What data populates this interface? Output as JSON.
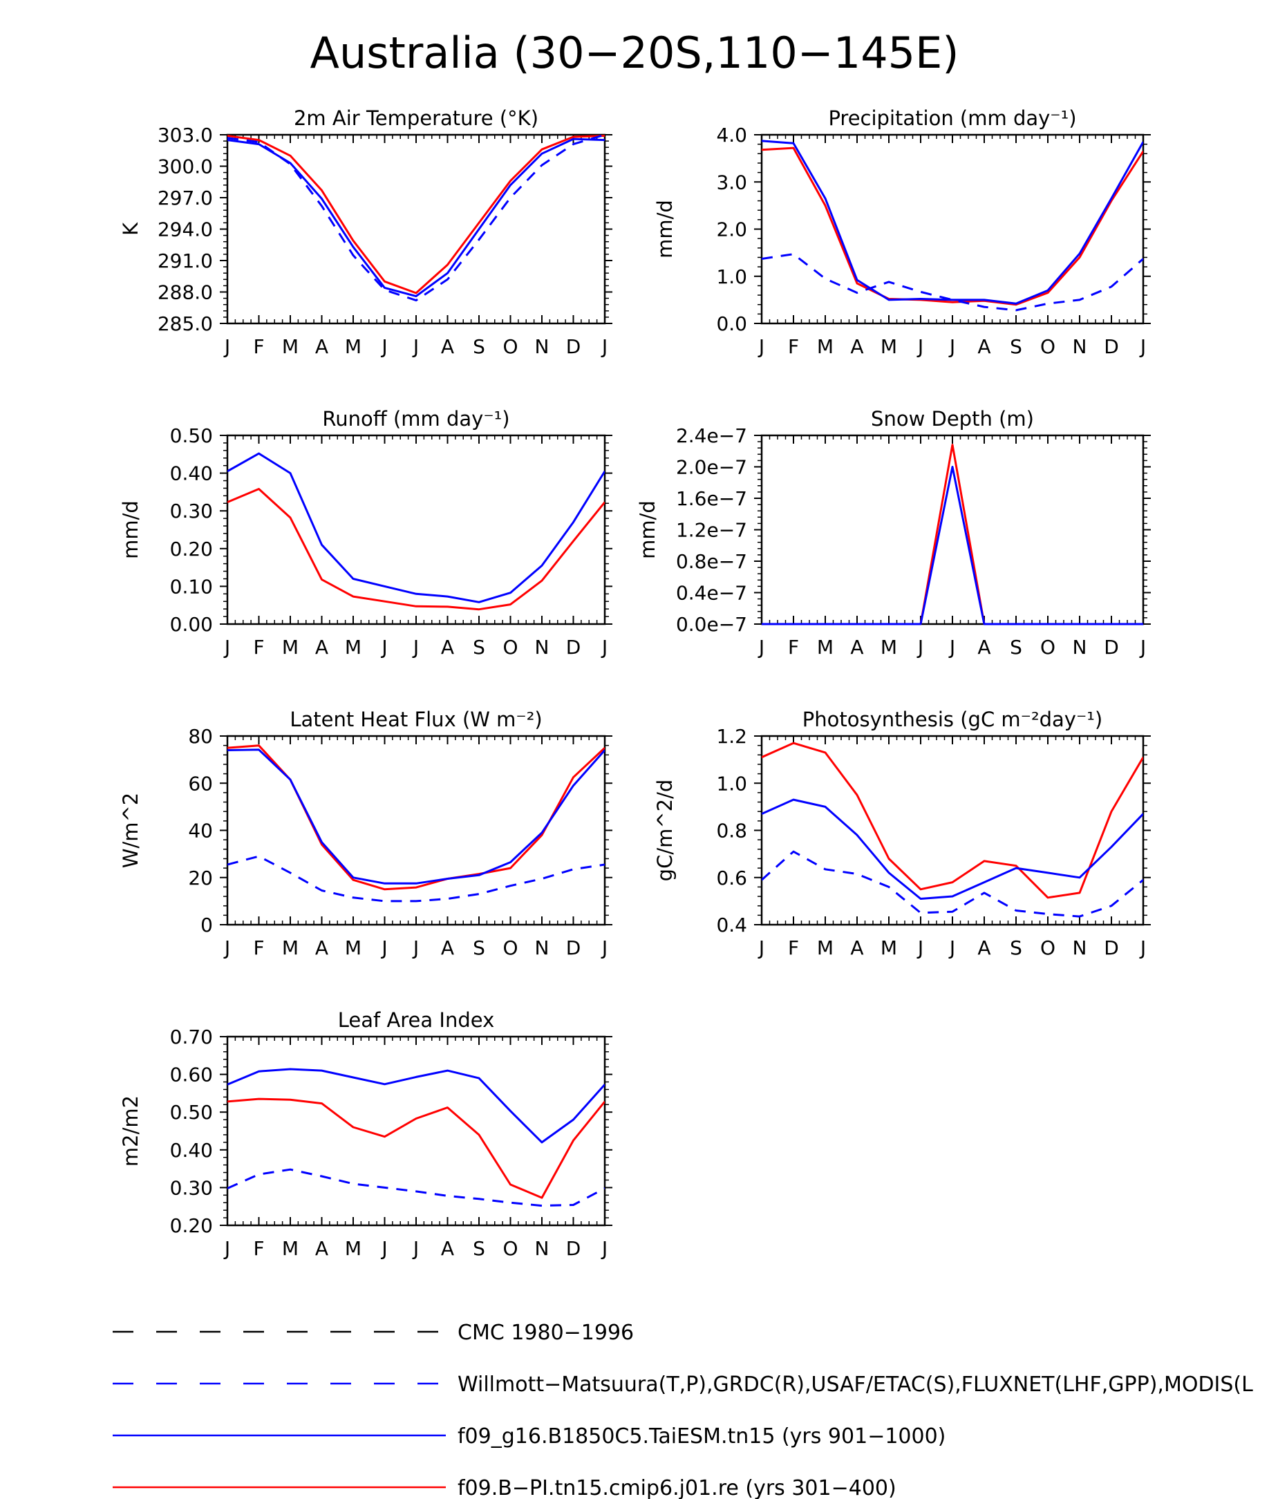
{
  "title": "Australia (30−20S,110−145E)",
  "colors": {
    "model1": "#0000ff",
    "model2": "#ff0000",
    "obs1": "#000000",
    "obs2": "#0000ff"
  },
  "legend": [
    {
      "label": "CMC 1980−1996",
      "color": "#000000",
      "dash": true
    },
    {
      "label": "Willmott−Matsuura(T,P),GRDC(R),USAF/ETAC(S),FLUXNET(LHF,GPP),MODIS(L",
      "color": "#0000ff",
      "dash": true
    },
    {
      "label": "f09_g16.B1850C5.TaiESM.tn15 (yrs 901−1000)",
      "color": "#0000ff",
      "dash": false
    },
    {
      "label": "f09.B−PI.tn15.cmip6.j01.re (yrs 301−400)",
      "color": "#ff0000",
      "dash": false
    }
  ],
  "chart_data": [
    {
      "type": "line",
      "title": "2m Air Temperature (°K)",
      "ylabel": "K",
      "categories": [
        "J",
        "F",
        "M",
        "A",
        "M",
        "J",
        "J",
        "A",
        "S",
        "O",
        "N",
        "D",
        "J"
      ],
      "ylim": [
        285.0,
        303.0
      ],
      "yticks": [
        285.0,
        288.0,
        291.0,
        294.0,
        297.0,
        300.0,
        303.0
      ],
      "ytick_labels": [
        "285.0",
        "288.0",
        "291.0",
        "294.0",
        "297.0",
        "300.0",
        "303.0"
      ],
      "series": [
        {
          "values": [
            302.9,
            302.5,
            301.0,
            297.7,
            292.9,
            289.0,
            287.9,
            290.6,
            294.6,
            298.6,
            301.6,
            302.8,
            302.9
          ],
          "color": "#ff0000",
          "dash": false
        },
        {
          "values": [
            302.5,
            302.1,
            300.3,
            296.9,
            292.3,
            288.4,
            287.6,
            289.8,
            294.0,
            298.2,
            301.2,
            302.6,
            302.5
          ],
          "color": "#0000ff",
          "dash": false
        },
        {
          "values": [
            302.7,
            302.3,
            300.2,
            296.2,
            291.5,
            288.2,
            287.2,
            289.2,
            293.0,
            297.0,
            300.1,
            302.1,
            303.0
          ],
          "color": "#0000ff",
          "dash": true
        }
      ]
    },
    {
      "type": "line",
      "title": "Precipitation (mm day⁻¹)",
      "ylabel": "mm/d",
      "categories": [
        "J",
        "F",
        "M",
        "A",
        "M",
        "J",
        "J",
        "A",
        "S",
        "O",
        "N",
        "D",
        "J"
      ],
      "ylim": [
        0.0,
        4.0
      ],
      "yticks": [
        0.0,
        1.0,
        2.0,
        3.0,
        4.0
      ],
      "ytick_labels": [
        "0.0",
        "1.0",
        "2.0",
        "3.0",
        "4.0"
      ],
      "series": [
        {
          "values": [
            3.68,
            3.72,
            2.5,
            0.85,
            0.52,
            0.5,
            0.45,
            0.48,
            0.4,
            0.65,
            1.4,
            2.6,
            3.65
          ],
          "color": "#ff0000",
          "dash": false
        },
        {
          "values": [
            3.87,
            3.82,
            2.65,
            0.92,
            0.5,
            0.52,
            0.5,
            0.5,
            0.42,
            0.7,
            1.48,
            2.65,
            3.85
          ],
          "color": "#0000ff",
          "dash": false
        },
        {
          "values": [
            1.37,
            1.47,
            0.95,
            0.65,
            0.88,
            0.67,
            0.5,
            0.35,
            0.28,
            0.42,
            0.5,
            0.78,
            1.37
          ],
          "color": "#0000ff",
          "dash": true
        }
      ]
    },
    {
      "type": "line",
      "title": "Runoff (mm day⁻¹)",
      "ylabel": "mm/d",
      "categories": [
        "J",
        "F",
        "M",
        "A",
        "M",
        "J",
        "J",
        "A",
        "S",
        "O",
        "N",
        "D",
        "J"
      ],
      "ylim": [
        0.0,
        0.5
      ],
      "yticks": [
        0.0,
        0.1,
        0.2,
        0.3,
        0.4,
        0.5
      ],
      "ytick_labels": [
        "0.00",
        "0.10",
        "0.20",
        "0.30",
        "0.40",
        "0.50"
      ],
      "series": [
        {
          "values": [
            0.323,
            0.358,
            0.282,
            0.118,
            0.073,
            0.06,
            0.047,
            0.046,
            0.039,
            0.052,
            0.115,
            0.22,
            0.323
          ],
          "color": "#ff0000",
          "dash": false
        },
        {
          "values": [
            0.405,
            0.452,
            0.4,
            0.21,
            0.12,
            0.1,
            0.08,
            0.073,
            0.058,
            0.083,
            0.155,
            0.27,
            0.405
          ],
          "color": "#0000ff",
          "dash": false
        }
      ]
    },
    {
      "type": "line",
      "title": "Snow Depth (m)",
      "ylabel": "mm/d",
      "categories": [
        "J",
        "F",
        "M",
        "A",
        "M",
        "J",
        "J",
        "A",
        "S",
        "O",
        "N",
        "D",
        "J"
      ],
      "ylim": [
        0.0,
        2.4e-07
      ],
      "yticks": [
        0.0,
        4e-08,
        8e-08,
        1.2e-07,
        1.6e-07,
        2e-07,
        2.4e-07
      ],
      "ytick_labels": [
        "0.0e−7",
        "0.4e−7",
        "0.8e−7",
        "1.2e−7",
        "1.6e−7",
        "2.0e−7",
        "2.4e−7"
      ],
      "series": [
        {
          "values": [
            0,
            0,
            0,
            0,
            0,
            0,
            2.28e-07,
            0,
            0,
            0,
            0,
            0,
            0
          ],
          "color": "#ff0000",
          "dash": false
        },
        {
          "values": [
            0,
            0,
            0,
            0,
            0,
            0,
            2e-07,
            0,
            0,
            0,
            0,
            0,
            0
          ],
          "color": "#0000ff",
          "dash": false
        }
      ]
    },
    {
      "type": "line",
      "title": "Latent Heat Flux (W m⁻²)",
      "ylabel": "W/m^2",
      "categories": [
        "J",
        "F",
        "M",
        "A",
        "M",
        "J",
        "J",
        "A",
        "S",
        "O",
        "N",
        "D",
        "J"
      ],
      "ylim": [
        0,
        80
      ],
      "yticks": [
        0,
        20,
        40,
        60,
        80
      ],
      "ytick_labels": [
        "0",
        "20",
        "40",
        "60",
        "80"
      ],
      "series": [
        {
          "values": [
            75.0,
            76.0,
            61.5,
            34.0,
            19.0,
            15.0,
            15.8,
            19.5,
            21.5,
            24.0,
            38.0,
            62.5,
            75.0
          ],
          "color": "#ff0000",
          "dash": false
        },
        {
          "values": [
            74.0,
            74.2,
            61.5,
            35.0,
            20.0,
            17.5,
            17.5,
            19.5,
            21.0,
            26.5,
            39.0,
            59.0,
            74.0
          ],
          "color": "#0000ff",
          "dash": false
        },
        {
          "values": [
            25.5,
            29.0,
            22.0,
            14.5,
            11.5,
            10.0,
            10.0,
            11.0,
            13.0,
            16.5,
            19.5,
            23.5,
            25.5
          ],
          "color": "#0000ff",
          "dash": true
        }
      ]
    },
    {
      "type": "line",
      "title": "Photosynthesis (gC m⁻²day⁻¹)",
      "ylabel": "gC/m^2/d",
      "categories": [
        "J",
        "F",
        "M",
        "A",
        "M",
        "J",
        "J",
        "A",
        "S",
        "O",
        "N",
        "D",
        "J"
      ],
      "ylim": [
        0.4,
        1.2
      ],
      "yticks": [
        0.4,
        0.6,
        0.8,
        1.0,
        1.2
      ],
      "ytick_labels": [
        "0.4",
        "0.6",
        "0.8",
        "1.0",
        "1.2"
      ],
      "series": [
        {
          "values": [
            1.11,
            1.17,
            1.13,
            0.95,
            0.68,
            0.55,
            0.58,
            0.67,
            0.65,
            0.515,
            0.535,
            0.88,
            1.11
          ],
          "color": "#ff0000",
          "dash": false
        },
        {
          "values": [
            0.87,
            0.93,
            0.9,
            0.78,
            0.62,
            0.51,
            0.52,
            0.58,
            0.64,
            0.62,
            0.6,
            0.73,
            0.87
          ],
          "color": "#0000ff",
          "dash": false
        },
        {
          "values": [
            0.59,
            0.71,
            0.635,
            0.615,
            0.56,
            0.45,
            0.455,
            0.535,
            0.46,
            0.445,
            0.435,
            0.48,
            0.59
          ],
          "color": "#0000ff",
          "dash": true
        }
      ]
    },
    {
      "type": "line",
      "title": "Leaf Area Index",
      "ylabel": "m2/m2",
      "categories": [
        "J",
        "F",
        "M",
        "A",
        "M",
        "J",
        "J",
        "A",
        "S",
        "O",
        "N",
        "D",
        "J"
      ],
      "ylim": [
        0.2,
        0.7
      ],
      "yticks": [
        0.2,
        0.3,
        0.4,
        0.5,
        0.6,
        0.7
      ],
      "ytick_labels": [
        "0.20",
        "0.30",
        "0.40",
        "0.50",
        "0.60",
        "0.70"
      ],
      "series": [
        {
          "values": [
            0.528,
            0.535,
            0.533,
            0.523,
            0.46,
            0.435,
            0.483,
            0.512,
            0.44,
            0.308,
            0.273,
            0.425,
            0.528
          ],
          "color": "#ff0000",
          "dash": false
        },
        {
          "values": [
            0.573,
            0.608,
            0.614,
            0.61,
            0.592,
            0.574,
            0.593,
            0.61,
            0.59,
            0.503,
            0.42,
            0.48,
            0.573
          ],
          "color": "#0000ff",
          "dash": false
        },
        {
          "values": [
            0.298,
            0.335,
            0.348,
            0.33,
            0.31,
            0.3,
            0.29,
            0.278,
            0.27,
            0.26,
            0.252,
            0.254,
            0.298
          ],
          "color": "#0000ff",
          "dash": true
        }
      ]
    }
  ]
}
